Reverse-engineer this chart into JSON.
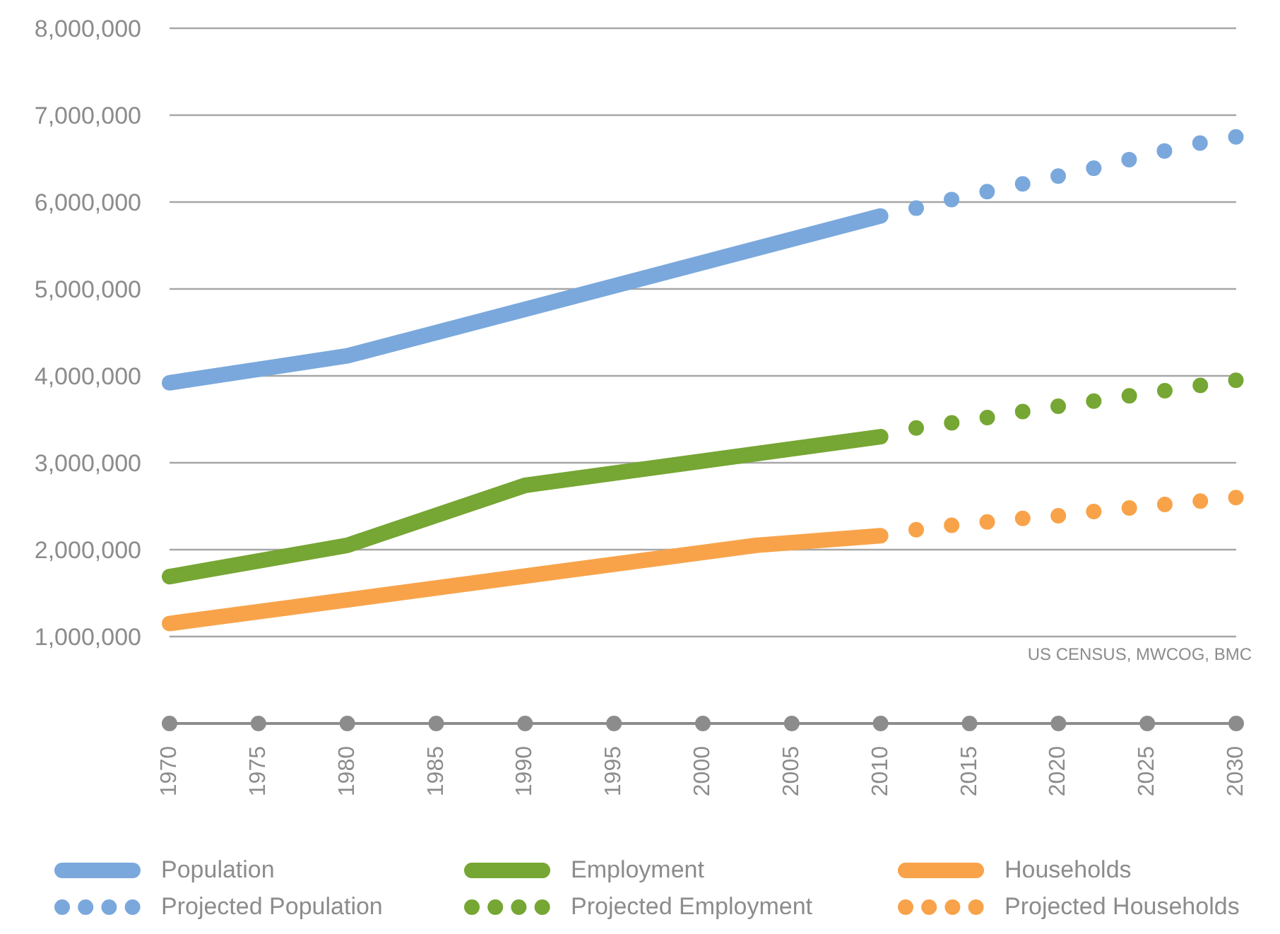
{
  "chart_data": {
    "type": "line",
    "xlim": [
      1970,
      2030
    ],
    "xticks": [
      {
        "value": 1970,
        "label": "1970"
      },
      {
        "value": 1975,
        "label": "1975"
      },
      {
        "value": 1980,
        "label": "1980"
      },
      {
        "value": 1985,
        "label": "1985"
      },
      {
        "value": 1990,
        "label": "1990"
      },
      {
        "value": 1995,
        "label": "1995"
      },
      {
        "value": 2000,
        "label": "2000"
      },
      {
        "value": 2005,
        "label": "2005"
      },
      {
        "value": 2010,
        "label": "2010"
      },
      {
        "value": 2015,
        "label": "2015"
      },
      {
        "value": 2020,
        "label": "2020"
      },
      {
        "value": 2025,
        "label": "2025"
      },
      {
        "value": 2030,
        "label": "2030"
      }
    ],
    "ylim": [
      0,
      8000000
    ],
    "yticks": [
      {
        "value": 0,
        "label": null
      },
      {
        "value": 1000000,
        "label": "1,000,000"
      },
      {
        "value": 2000000,
        "label": "2,000,000"
      },
      {
        "value": 3000000,
        "label": "3,000,000"
      },
      {
        "value": 4000000,
        "label": "4,000,000"
      },
      {
        "value": 5000000,
        "label": "5,000,000"
      },
      {
        "value": 6000000,
        "label": "6,000,000"
      },
      {
        "value": 7000000,
        "label": "7,000,000"
      },
      {
        "value": 8000000,
        "label": "8,000,000"
      }
    ],
    "grid": "y",
    "legend": "bottom",
    "marker": "none",
    "annotations": [
      "US CENSUS, MWCOG, BMC"
    ],
    "series": [
      {
        "name": "Population",
        "color": "#7aa8dc",
        "line_style": "solid",
        "x": [
          1970,
          1980,
          2010
        ],
        "values": [
          3920000,
          4230000,
          5840000
        ]
      },
      {
        "name": "Employment",
        "color": "#76a633",
        "line_style": "solid",
        "x": [
          1970,
          1980,
          1990,
          2010
        ],
        "values": [
          1690000,
          2050000,
          2740000,
          3300000
        ]
      },
      {
        "name": "Households",
        "color": "#f8a34a",
        "line_style": "solid",
        "x": [
          1970,
          2003,
          2010
        ],
        "values": [
          1150000,
          2050000,
          2160000
        ]
      },
      {
        "name": "Projected Population",
        "color": "#7aa8dc",
        "line_style": "dotted",
        "x": [
          2012,
          2014,
          2016,
          2018,
          2020,
          2022,
          2024,
          2026,
          2028,
          2030
        ],
        "values": [
          5930000,
          6030000,
          6120000,
          6210000,
          6300000,
          6390000,
          6490000,
          6590000,
          6680000,
          6750000
        ]
      },
      {
        "name": "Projected Employment",
        "color": "#76a633",
        "line_style": "dotted",
        "x": [
          2012,
          2014,
          2016,
          2018,
          2020,
          2022,
          2024,
          2026,
          2028,
          2030
        ],
        "values": [
          3400000,
          3460000,
          3520000,
          3590000,
          3650000,
          3710000,
          3770000,
          3830000,
          3890000,
          3950000
        ]
      },
      {
        "name": "Projected Households",
        "color": "#f8a34a",
        "line_style": "dotted",
        "x": [
          2012,
          2014,
          2016,
          2018,
          2020,
          2022,
          2024,
          2026,
          2028,
          2030
        ],
        "values": [
          2230000,
          2280000,
          2320000,
          2360000,
          2390000,
          2440000,
          2480000,
          2520000,
          2560000,
          2600000
        ]
      }
    ]
  }
}
